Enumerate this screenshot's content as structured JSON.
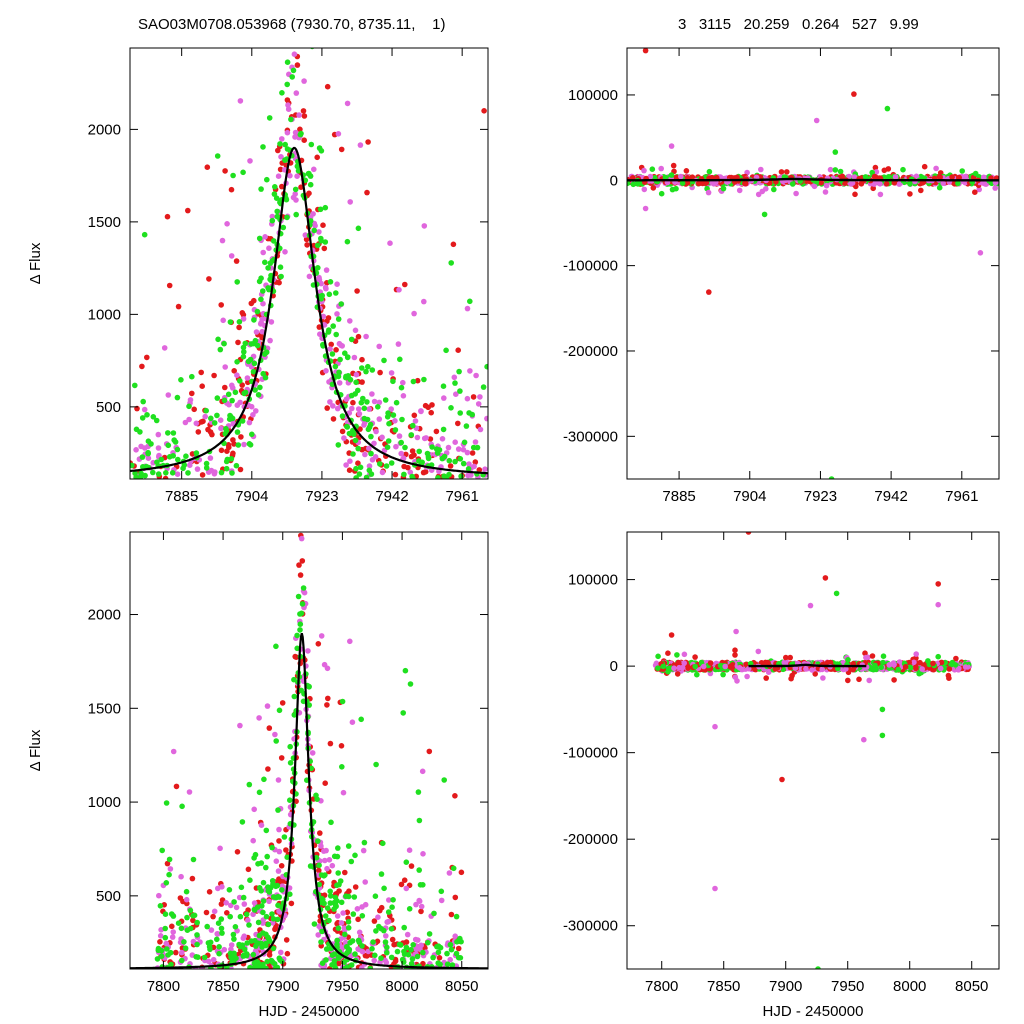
{
  "title_left": "SAO03M0708.053968 (7930.70, 8735.11,    1)",
  "title_right": "3   3115   20.259   0.264   527   9.99",
  "colors": {
    "red": "#e31a1c",
    "green": "#1fe01f",
    "magenta": "#e066dd",
    "model": "#000000"
  },
  "chart_data": [
    {
      "type": "scatter",
      "panel": "top-left",
      "title": "",
      "xlabel": "",
      "ylabel": "Δ Flux",
      "xlim": [
        7871,
        7968
      ],
      "ylim": [
        110,
        2440
      ],
      "xticks": [
        7885,
        7904,
        7923,
        7942,
        7961
      ],
      "yticks": [
        500,
        1000,
        1500,
        2000
      ],
      "model": {
        "peak_x": 7915.5,
        "peak_y": 1900,
        "base_y": 110,
        "width": 7
      },
      "series": [
        {
          "color": "red",
          "n": 260,
          "x_range": [
            7871,
            7968
          ],
          "y_range": [
            110,
            2440
          ]
        },
        {
          "color": "magenta",
          "n": 320,
          "x_range": [
            7871,
            7968
          ],
          "y_range": [
            110,
            2440
          ]
        },
        {
          "color": "green",
          "n": 380,
          "x_range": [
            7871,
            7968
          ],
          "y_range": [
            110,
            2440
          ]
        }
      ]
    },
    {
      "type": "scatter",
      "panel": "top-right",
      "title": "",
      "xlabel": "",
      "ylabel": "",
      "xlim": [
        7871,
        7971
      ],
      "ylim": [
        -350000,
        155000
      ],
      "xticks": [
        7885,
        7904,
        7923,
        7942,
        7961
      ],
      "yticks": [
        -300000,
        -200000,
        -100000,
        0,
        100000
      ],
      "outliers": [
        {
          "x": 7876,
          "y": 152000,
          "color": "red"
        },
        {
          "x": 7893,
          "y": -131000,
          "color": "red"
        },
        {
          "x": 7932,
          "y": 101000,
          "color": "red"
        },
        {
          "x": 7941,
          "y": 84000,
          "color": "green"
        },
        {
          "x": 7922,
          "y": 70000,
          "color": "magenta"
        },
        {
          "x": 7883,
          "y": 40000,
          "color": "magenta"
        },
        {
          "x": 7927,
          "y": 33000,
          "color": "green"
        },
        {
          "x": 7876,
          "y": -33000,
          "color": "magenta"
        },
        {
          "x": 7908,
          "y": -40000,
          "color": "green"
        },
        {
          "x": 7966,
          "y": -85000,
          "color": "magenta"
        },
        {
          "x": 7926,
          "y": -350000,
          "color": "green"
        }
      ]
    },
    {
      "type": "scatter",
      "panel": "bottom-left",
      "title": "",
      "xlabel": "HJD - 2450000",
      "ylabel": "Δ Flux",
      "xlim": [
        7772,
        8072
      ],
      "ylim": [
        110,
        2440
      ],
      "xticks": [
        7800,
        7850,
        7900,
        7950,
        8000,
        8050
      ],
      "yticks": [
        500,
        1000,
        1500,
        2000
      ],
      "model": {
        "peak_x": 7916,
        "peak_y": 1900,
        "base_y": 110,
        "width": 7
      },
      "series": [
        {
          "color": "red",
          "n": 300,
          "x_range": [
            7795,
            8050
          ],
          "y_range": [
            110,
            2440
          ]
        },
        {
          "color": "magenta",
          "n": 320,
          "x_range": [
            7795,
            8050
          ],
          "y_range": [
            110,
            2440
          ]
        },
        {
          "color": "green",
          "n": 420,
          "x_range": [
            7795,
            8050
          ],
          "y_range": [
            110,
            2440
          ]
        }
      ]
    },
    {
      "type": "scatter",
      "panel": "bottom-right",
      "title": "",
      "xlabel": "HJD - 2450000",
      "ylabel": "",
      "xlim": [
        7772,
        8072
      ],
      "ylim": [
        -350000,
        155000
      ],
      "xticks": [
        7800,
        7850,
        7900,
        7950,
        8000,
        8050
      ],
      "yticks": [
        -300000,
        -200000,
        -100000,
        0,
        100000
      ],
      "outliers": [
        {
          "x": 7870,
          "y": 155000,
          "color": "red"
        },
        {
          "x": 7932,
          "y": 102000,
          "color": "red"
        },
        {
          "x": 7941,
          "y": 84000,
          "color": "green"
        },
        {
          "x": 8023,
          "y": 95000,
          "color": "red"
        },
        {
          "x": 8023,
          "y": 71000,
          "color": "magenta"
        },
        {
          "x": 7920,
          "y": 70000,
          "color": "magenta"
        },
        {
          "x": 7860,
          "y": 40000,
          "color": "magenta"
        },
        {
          "x": 7808,
          "y": 36000,
          "color": "red"
        },
        {
          "x": 7843,
          "y": -70000,
          "color": "magenta"
        },
        {
          "x": 7897,
          "y": -131000,
          "color": "red"
        },
        {
          "x": 7843,
          "y": -257000,
          "color": "magenta"
        },
        {
          "x": 7963,
          "y": -85000,
          "color": "magenta"
        },
        {
          "x": 7978,
          "y": -80000,
          "color": "green"
        },
        {
          "x": 7978,
          "y": -50000,
          "color": "green"
        },
        {
          "x": 7926,
          "y": -350000,
          "color": "green"
        }
      ]
    }
  ]
}
